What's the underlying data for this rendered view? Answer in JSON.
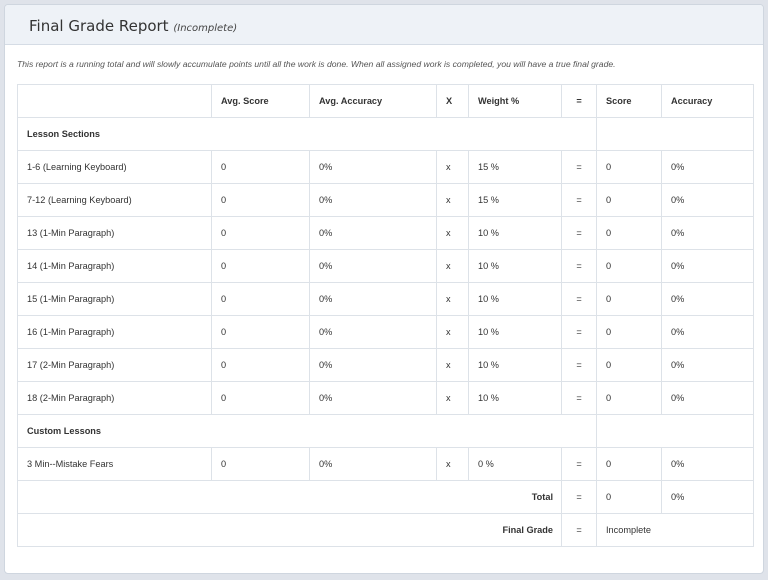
{
  "header": {
    "title": "Final Grade Report",
    "status": "(Incomplete)"
  },
  "intro": "This report is a running total and will slowly accumulate points until all the work is done. When all assigned work is completed, you will have a true final grade.",
  "table": {
    "columns": [
      "",
      "Avg. Score",
      "Avg. Accuracy",
      "X",
      "Weight %",
      "=",
      "Score",
      "Accuracy"
    ],
    "lesson_sections_label": "Lesson Sections",
    "lesson_rows": [
      {
        "name": "1-6 (Learning Keyboard)",
        "avg_score": "0",
        "avg_accuracy": "0%",
        "x": "x",
        "weight": "15 %",
        "eq": "=",
        "score": "0",
        "accuracy": "0%"
      },
      {
        "name": "7-12 (Learning Keyboard)",
        "avg_score": "0",
        "avg_accuracy": "0%",
        "x": "x",
        "weight": "15 %",
        "eq": "=",
        "score": "0",
        "accuracy": "0%"
      },
      {
        "name": "13 (1-Min Paragraph)",
        "avg_score": "0",
        "avg_accuracy": "0%",
        "x": "x",
        "weight": "10 %",
        "eq": "=",
        "score": "0",
        "accuracy": "0%"
      },
      {
        "name": "14 (1-Min Paragraph)",
        "avg_score": "0",
        "avg_accuracy": "0%",
        "x": "x",
        "weight": "10 %",
        "eq": "=",
        "score": "0",
        "accuracy": "0%"
      },
      {
        "name": "15 (1-Min Paragraph)",
        "avg_score": "0",
        "avg_accuracy": "0%",
        "x": "x",
        "weight": "10 %",
        "eq": "=",
        "score": "0",
        "accuracy": "0%"
      },
      {
        "name": "16 (1-Min Paragraph)",
        "avg_score": "0",
        "avg_accuracy": "0%",
        "x": "x",
        "weight": "10 %",
        "eq": "=",
        "score": "0",
        "accuracy": "0%"
      },
      {
        "name": "17 (2-Min Paragraph)",
        "avg_score": "0",
        "avg_accuracy": "0%",
        "x": "x",
        "weight": "10 %",
        "eq": "=",
        "score": "0",
        "accuracy": "0%"
      },
      {
        "name": "18 (2-Min Paragraph)",
        "avg_score": "0",
        "avg_accuracy": "0%",
        "x": "x",
        "weight": "10 %",
        "eq": "=",
        "score": "0",
        "accuracy": "0%"
      }
    ],
    "custom_lessons_label": "Custom Lessons",
    "custom_rows": [
      {
        "name": "3 Min--Mistake Fears",
        "avg_score": "0",
        "avg_accuracy": "0%",
        "x": "x",
        "weight": "0 %",
        "eq": "=",
        "score": "0",
        "accuracy": "0%"
      }
    ],
    "total": {
      "label": "Total",
      "eq": "=",
      "score": "0",
      "accuracy": "0%"
    },
    "final": {
      "label": "Final Grade",
      "eq": "=",
      "value": "Incomplete"
    }
  }
}
